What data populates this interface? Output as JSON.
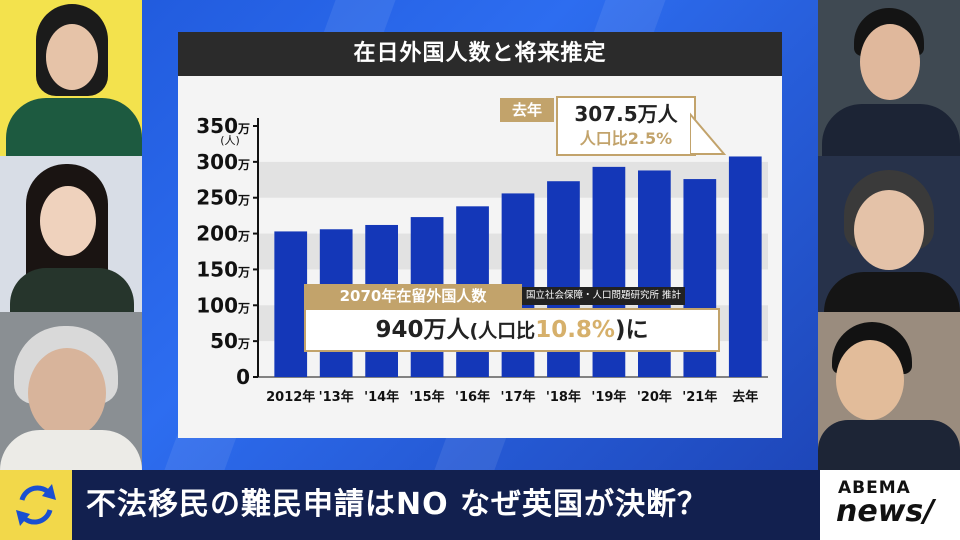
{
  "board": {
    "title": "在日外国人数と将来推定"
  },
  "callouts": {
    "lastyear_tag": "去年",
    "lastyear_value": "307.5万人",
    "lastyear_ratio": "人口比2.5%",
    "projection_tag": "2070年在留外国人数",
    "projection_source": "国立社会保障・人口問題研究所 推計",
    "projection_main": "940万人",
    "projection_paren_open": "(人口比",
    "projection_ratio": "10.8%",
    "projection_paren_close": ")に"
  },
  "headline": "不法移民の難民申請はNO なぜ英国が決断？",
  "logo": {
    "line1": "ABEMA",
    "line2": "news/"
  },
  "icons": {
    "loop": "refresh-loop-icon"
  },
  "colors": {
    "bar": "#1437b8",
    "accent": "#c2a36b",
    "headline_bg": "#12204f",
    "loop_bg": "#f2d84a"
  },
  "chart_data": {
    "type": "bar",
    "categories": [
      "2012年",
      "'13年",
      "'14年",
      "'15年",
      "'16年",
      "'17年",
      "'18年",
      "'19年",
      "'20年",
      "'21年",
      "去年"
    ],
    "values": [
      203,
      206,
      212,
      223,
      238,
      256,
      273,
      293,
      288,
      276,
      307.5
    ],
    "ylabel": "(人)",
    "yticks": [
      "0",
      "50万",
      "100万",
      "150万",
      "200万",
      "250万",
      "300万",
      "350万"
    ],
    "ylim": [
      0,
      350
    ],
    "grid": true
  }
}
